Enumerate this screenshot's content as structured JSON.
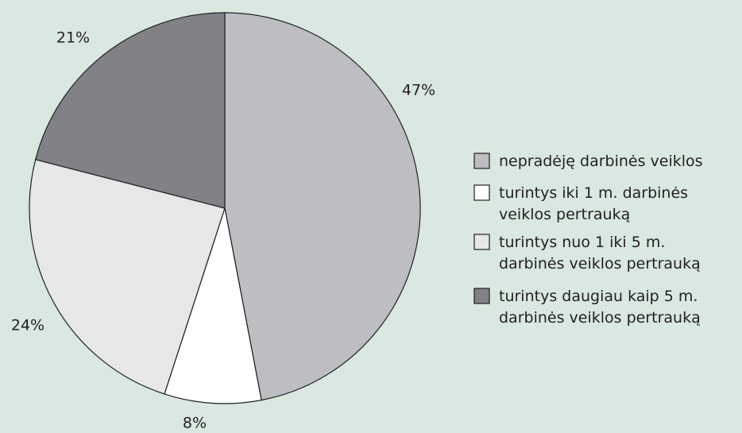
{
  "chart_data": {
    "type": "pie",
    "categories": [
      "nepradėję darbinės veiklos",
      "turintys iki 1 m. darbinės\nveiklos pertrauką",
      "turintys nuo 1 iki 5 m.\ndarbinės veiklos pertrauką",
      "turintys daugiau kaip 5 m.\ndarbinės veiklos pertrauką"
    ],
    "values": [
      47,
      8,
      24,
      21
    ],
    "value_labels": [
      "47%",
      "8%",
      "24%",
      "21%"
    ],
    "colors": [
      "#bdbec2",
      "#ffffff",
      "#e6e7e9",
      "#808285"
    ],
    "legend": "right"
  }
}
